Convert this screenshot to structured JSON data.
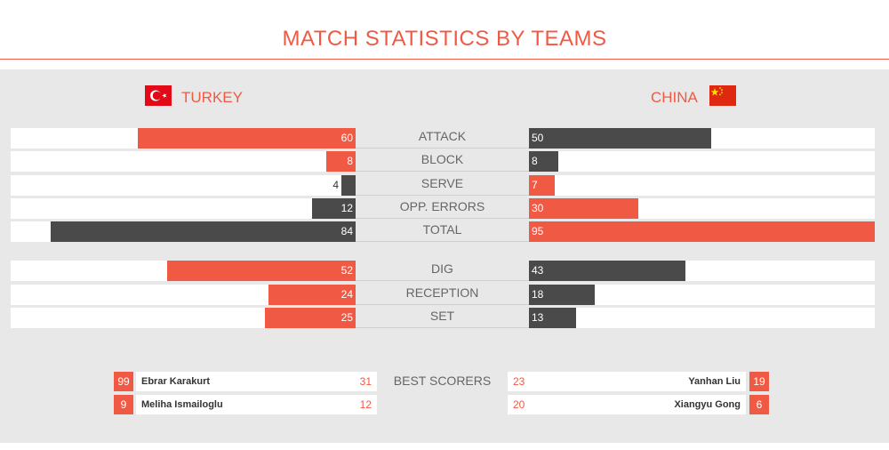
{
  "page": {
    "title": "MATCH STATISTICS BY TEAMS"
  },
  "teams": {
    "left": {
      "name": "TURKEY",
      "flag_icon": "turkey-flag-icon"
    },
    "right": {
      "name": "CHINA",
      "flag_icon": "china-flag-icon"
    }
  },
  "colors": {
    "accent": "#f05a45",
    "dark": "#4a4a4a",
    "panel": "#e8e8e8"
  },
  "chart_data": {
    "type": "bar",
    "categories": [
      "ATTACK",
      "BLOCK",
      "SERVE",
      "OPP. ERRORS",
      "TOTAL",
      "DIG",
      "RECEPTION",
      "SET"
    ],
    "series": [
      {
        "name": "TURKEY",
        "values": [
          60,
          8,
          4,
          12,
          84,
          52,
          24,
          25
        ]
      },
      {
        "name": "CHINA",
        "values": [
          50,
          8,
          7,
          30,
          95,
          43,
          18,
          13
        ]
      }
    ],
    "winner_color": [
      "TURKEY",
      "TURKEY",
      "CHINA",
      "CHINA",
      "CHINA",
      "TURKEY",
      "TURKEY",
      "TURKEY"
    ]
  },
  "best_scorers": {
    "label": "BEST SCORERS",
    "left": [
      {
        "number": "99",
        "name": "Ebrar Karakurt",
        "points": "31"
      },
      {
        "number": "9",
        "name": "Meliha Ismailoglu",
        "points": "12"
      }
    ],
    "right": [
      {
        "number": "19",
        "name": "Yanhan Liu",
        "points": "23"
      },
      {
        "number": "6",
        "name": "Xiangyu Gong",
        "points": "20"
      }
    ]
  }
}
